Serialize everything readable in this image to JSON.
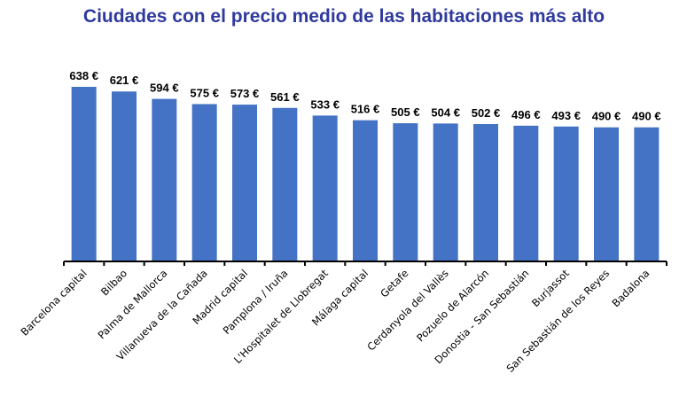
{
  "chart_data": {
    "type": "bar",
    "title": "Ciudades con el precio medio de las habitaciones más alto",
    "xlabel": "",
    "ylabel": "",
    "ylim": [
      0,
      700
    ],
    "grid": false,
    "unit_suffix": " €",
    "bar_color": "#4472C4",
    "categories": [
      "Barcelona capital",
      "Bilbao",
      "Palma de Mallorca",
      "Villanueva de la Cañada",
      "Madrid capital",
      "Pamplona / Iruña",
      "L'Hospitalet de Llobregat",
      "Málaga capital",
      "Getafe",
      "Cerdanyola del Vallès",
      "Pozuelo de Alarcón",
      "Donostia - San Sebastián",
      "Burjassot",
      "San Sebastián de los Reyes",
      "Badalona"
    ],
    "values": [
      638,
      621,
      594,
      575,
      573,
      561,
      533,
      516,
      505,
      504,
      502,
      496,
      493,
      490,
      490
    ],
    "data_labels": [
      "638 €",
      "621 €",
      "594 €",
      "575 €",
      "573 €",
      "561 €",
      "533 €",
      "516 €",
      "505 €",
      "504 €",
      "502 €",
      "496 €",
      "493 €",
      "490 €",
      "490 €"
    ]
  }
}
